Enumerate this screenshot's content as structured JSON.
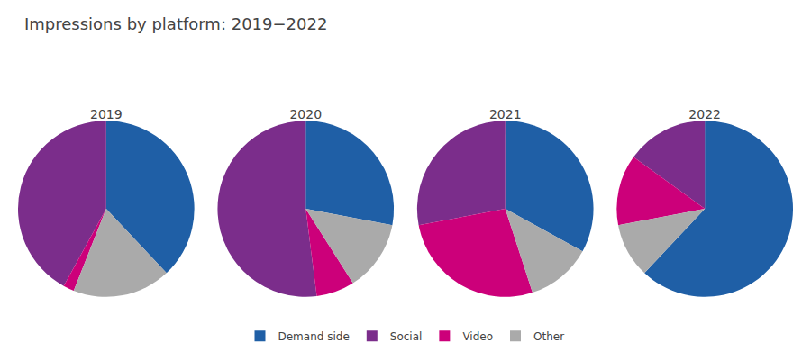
{
  "chart_data": {
    "type": "pie",
    "title": "Impressions by platform: 2019−2022",
    "categories": [
      "Demand side",
      "Social",
      "Video",
      "Other"
    ],
    "colors": [
      "#1f5fa6",
      "#7b2d8b",
      "#cc007a",
      "#aaaaaa"
    ],
    "series": [
      {
        "name": "2019",
        "values": [
          38,
          42,
          2,
          18
        ]
      },
      {
        "name": "2020",
        "values": [
          28,
          52,
          7,
          13
        ]
      },
      {
        "name": "2021",
        "values": [
          33,
          28,
          27,
          12
        ]
      },
      {
        "name": "2022",
        "values": [
          62,
          15,
          13,
          10
        ]
      }
    ],
    "legend": "bottom"
  }
}
